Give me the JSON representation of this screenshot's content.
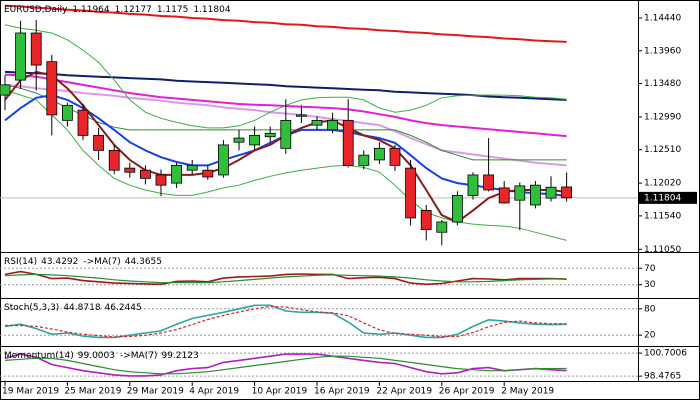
{
  "chart_data": [
    {
      "type": "candlestick",
      "title": "EURUSD,Daily",
      "categories": [
        "19 Mar 2019",
        null,
        null,
        null,
        "25 Mar 2019",
        null,
        null,
        null,
        "29 Mar 2019",
        null,
        null,
        null,
        "4 Apr 2019",
        null,
        null,
        null,
        "10 Apr 2019",
        null,
        null,
        null,
        "16 Apr 2019",
        null,
        null,
        null,
        "22 Apr 2019",
        null,
        null,
        null,
        "26 Apr 2019",
        null,
        null,
        null,
        "2 May 2019",
        null,
        null,
        null,
        null
      ],
      "open": [
        1.1331,
        1.1353,
        1.1422,
        1.138,
        1.1294,
        1.1309,
        1.1272,
        1.125,
        1.1224,
        1.1221,
        1.1214,
        1.1202,
        1.1221,
        1.1221,
        1.1214,
        1.1262,
        1.1258,
        1.127,
        1.1253,
        1.13,
        1.1287,
        1.128,
        1.1294,
        1.1228,
        1.1236,
        1.1253,
        1.1224,
        1.1162,
        1.113,
        1.1145,
        1.1184,
        1.1214,
        1.1195,
        1.1177,
        1.117,
        1.118,
        1.11964
      ],
      "high": [
        1.136,
        1.144,
        1.1441,
        1.139,
        1.132,
        1.1318,
        1.1283,
        1.1258,
        1.1232,
        1.1228,
        1.1222,
        1.1232,
        1.1236,
        1.1228,
        1.1265,
        1.128,
        1.1285,
        1.1285,
        1.1325,
        1.1316,
        1.13,
        1.1305,
        1.1325,
        1.125,
        1.1262,
        1.1258,
        1.1236,
        1.117,
        1.1148,
        1.119,
        1.1218,
        1.1268,
        1.1205,
        1.1203,
        1.1205,
        1.1212,
        1.12177
      ],
      "low": [
        1.1309,
        1.134,
        1.1338,
        1.1272,
        1.1285,
        1.1265,
        1.1236,
        1.1215,
        1.121,
        1.12,
        1.1183,
        1.1195,
        1.1215,
        1.1207,
        1.121,
        1.125,
        1.125,
        1.1262,
        1.1245,
        1.129,
        1.128,
        1.1275,
        1.1225,
        1.1222,
        1.123,
        1.122,
        1.114,
        1.1118,
        1.1111,
        1.114,
        1.1178,
        1.119,
        1.1172,
        1.1133,
        1.1165,
        1.1175,
        1.1175
      ],
      "close": [
        1.1346,
        1.1422,
        1.1375,
        1.1302,
        1.1316,
        1.1272,
        1.125,
        1.1221,
        1.1218,
        1.1209,
        1.1199,
        1.1228,
        1.1228,
        1.1211,
        1.1258,
        1.1268,
        1.1272,
        1.1275,
        1.1294,
        1.1302,
        1.1294,
        1.1294,
        1.1228,
        1.1243,
        1.1253,
        1.1228,
        1.1151,
        1.1134,
        1.1145,
        1.1184,
        1.1214,
        1.1192,
        1.1173,
        1.1198,
        1.1199,
        1.1196,
        1.11804
      ],
      "up_color": "#2fbf3a",
      "down_color": "#e8262a",
      "overlays": [
        {
          "color": "#e01818",
          "values": [
            1.1462,
            1.1461,
            1.1459,
            1.1458,
            1.1456,
            1.1455,
            1.1453,
            1.1452,
            1.145,
            1.1449,
            1.1447,
            1.1446,
            1.1444,
            1.1443,
            1.1441,
            1.144,
            1.1438,
            1.1437,
            1.1435,
            1.1434,
            1.1432,
            1.1431,
            1.1429,
            1.1428,
            1.1426,
            1.1425,
            1.1423,
            1.1422,
            1.142,
            1.1419,
            1.1417,
            1.1416,
            1.1414,
            1.1413,
            1.1411,
            1.141,
            1.1409
          ]
        },
        {
          "color": "#141c6e",
          "values": [
            1.1365,
            1.1364,
            1.1363,
            1.1362,
            1.136,
            1.1359,
            1.1358,
            1.1357,
            1.1356,
            1.1355,
            1.1354,
            1.1352,
            1.1351,
            1.135,
            1.1349,
            1.1348,
            1.1347,
            1.1346,
            1.1344,
            1.1343,
            1.1342,
            1.1341,
            1.134,
            1.1339,
            1.1338,
            1.1336,
            1.1335,
            1.1334,
            1.1333,
            1.1332,
            1.1331,
            1.1329,
            1.1328,
            1.1327,
            1.1326,
            1.1325,
            1.1324
          ]
        },
        {
          "color": "#e020d8",
          "values": [
            1.1361,
            1.136,
            1.1358,
            1.1354,
            1.135,
            1.1346,
            1.1342,
            1.1338,
            1.1334,
            1.1331,
            1.1328,
            1.1326,
            1.1324,
            1.1322,
            1.132,
            1.1318,
            1.1317,
            1.1316,
            1.1315,
            1.1314,
            1.1313,
            1.1312,
            1.131,
            1.1307,
            1.1303,
            1.1299,
            1.1294,
            1.129,
            1.1287,
            1.1285,
            1.1283,
            1.1281,
            1.1279,
            1.1277,
            1.1275,
            1.1273,
            1.1271
          ]
        },
        {
          "color": "#dc9ae6",
          "values": [
            1.1346,
            1.1344,
            1.1341,
            1.1339,
            1.1337,
            1.1334,
            1.1332,
            1.133,
            1.1327,
            1.1325,
            1.1323,
            1.132,
            1.1318,
            1.1316,
            1.1313,
            1.1311,
            1.1309,
            1.1306,
            1.1304,
            1.1302,
            1.1299,
            1.1296,
            1.1293,
            1.129,
            1.1287,
            1.1278,
            1.1268,
            1.1259,
            1.125,
            1.1247,
            1.1244,
            1.1241,
            1.1238,
            1.1235,
            1.1232,
            1.123,
            1.1228
          ]
        },
        {
          "color": "#2e8b2e",
          "values": [
            1.1346,
            1.1341,
            1.1334,
            1.1324,
            1.1312,
            1.1302,
            1.1291,
            1.1284,
            1.128,
            1.128,
            1.128,
            1.128,
            1.128,
            1.128,
            1.128,
            1.128,
            1.128,
            1.128,
            1.128,
            1.128,
            1.128,
            1.128,
            1.128,
            1.128,
            1.128,
            1.128,
            1.1272,
            1.1262,
            1.125,
            1.1243,
            1.1236,
            1.1236,
            1.1236,
            1.1236,
            1.1236,
            1.1236,
            1.1236
          ]
        },
        {
          "color": "#3cb043",
          "values": [
            1.1434,
            1.1429,
            1.1426,
            1.1422,
            1.1412,
            1.1397,
            1.1379,
            1.1353,
            1.1324,
            1.1306,
            1.1297,
            1.1291,
            1.1286,
            1.1283,
            1.1283,
            1.1286,
            1.1294,
            1.1306,
            1.1316,
            1.1324,
            1.1327,
            1.1328,
            1.1328,
            1.1324,
            1.1312,
            1.1306,
            1.1309,
            1.1316,
            1.1327,
            1.133,
            1.1331,
            1.1331,
            1.1331,
            1.133,
            1.1328,
            1.1327,
            1.1325
          ]
        },
        {
          "color": "#3cb043",
          "values": [
            1.1338,
            1.1331,
            1.1324,
            1.1302,
            1.128,
            1.125,
            1.1228,
            1.1209,
            1.1199,
            1.1192,
            1.1187,
            1.1184,
            1.1184,
            1.1189,
            1.1195,
            1.1199,
            1.1206,
            1.1212,
            1.1217,
            1.1221,
            1.1224,
            1.1227,
            1.1228,
            1.1225,
            1.1218,
            1.1199,
            1.1177,
            1.1159,
            1.1151,
            1.1145,
            1.1142,
            1.114,
            1.1139,
            1.1136,
            1.113,
            1.1124,
            1.1118
          ]
        },
        {
          "color": "#1440e6",
          "values": [
            1.1294,
            1.1312,
            1.1327,
            1.1331,
            1.1324,
            1.1312,
            1.1297,
            1.128,
            1.1262,
            1.125,
            1.124,
            1.1233,
            1.1228,
            1.1228,
            1.1236,
            1.1243,
            1.125,
            1.1261,
            1.1272,
            1.128,
            1.128,
            1.128,
            1.1277,
            1.1272,
            1.1268,
            1.1261,
            1.1243,
            1.1224,
            1.1209,
            1.1202,
            1.1199,
            1.1195,
            1.1192,
            1.1189,
            1.1187,
            1.1186,
            1.1183
          ]
        },
        {
          "color": "#8b1a1a",
          "values": [
            1.1324,
            1.1353,
            1.1365,
            1.136,
            1.1341,
            1.1316,
            1.1287,
            1.1258,
            1.1236,
            1.1221,
            1.1214,
            1.1214,
            1.1214,
            1.1217,
            1.1224,
            1.1236,
            1.125,
            1.1258,
            1.1272,
            1.1283,
            1.1291,
            1.1294,
            1.1283,
            1.1272,
            1.1265,
            1.1253,
            1.1228,
            1.1192,
            1.1155,
            1.1145,
            1.1162,
            1.118,
            1.1189,
            1.1192,
            1.1192,
            1.1192,
            1.1189
          ]
        }
      ],
      "ylim": [
        1.1104,
        1.1466
      ],
      "yticks": [
        {
          "value": 1.1444,
          "label": "1.14440"
        },
        {
          "value": 1.1396,
          "label": "1.13960"
        },
        {
          "value": 1.1348,
          "label": "1.13480"
        },
        {
          "value": 1.1299,
          "label": "1.12990"
        },
        {
          "value": 1.1251,
          "label": "1.12510"
        },
        {
          "value": 1.1202,
          "label": "1.12020"
        },
        {
          "value": 1.1154,
          "label": "1.11540"
        },
        {
          "value": 1.1105,
          "label": "1.11050"
        }
      ]
    },
    {
      "type": "line",
      "label": "RSI(14)",
      "ma_label": "->MA(7)",
      "series": [
        {
          "color": "#a01818",
          "values": [
            55,
            62,
            55,
            45,
            46,
            40,
            37,
            34,
            33,
            32,
            31,
            38,
            39,
            37,
            46,
            49,
            50,
            51,
            55,
            56,
            55,
            55,
            45,
            47,
            48,
            45,
            34,
            31,
            33,
            39,
            45,
            44,
            42,
            45,
            45,
            45,
            43.4292
          ]
        },
        {
          "color": "#2e8b2e",
          "values": [
            52,
            54,
            55,
            54,
            52,
            49,
            46,
            42,
            39,
            37,
            35,
            35,
            35,
            35,
            37,
            40,
            43,
            46,
            49,
            51,
            53,
            54,
            53,
            52,
            51,
            49,
            46,
            42,
            39,
            37,
            37,
            38,
            40,
            42,
            43,
            44,
            44.3655
          ]
        }
      ],
      "ylim": [
        0,
        100
      ],
      "yticks": [
        70,
        30
      ]
    },
    {
      "type": "line",
      "label": "Stoch(5,3,3)",
      "series": [
        {
          "color": "#2aa6a6",
          "values": [
            40,
            45,
            35,
            22,
            25,
            18,
            15,
            15,
            20,
            25,
            30,
            45,
            58,
            65,
            72,
            80,
            88,
            88,
            75,
            72,
            72,
            70,
            50,
            25,
            22,
            25,
            20,
            15,
            15,
            22,
            40,
            55,
            52,
            48,
            45,
            44,
            44.8718
          ]
        },
        {
          "color": "#e02020",
          "dash": true,
          "values": [
            42,
            42,
            40,
            34,
            27,
            22,
            19,
            16,
            17,
            20,
            25,
            33,
            44,
            56,
            65,
            73,
            80,
            85,
            84,
            78,
            73,
            71,
            64,
            48,
            32,
            24,
            22,
            20,
            17,
            17,
            26,
            39,
            49,
            52,
            48,
            46,
            46.2445
          ]
        }
      ],
      "ylim": [
        0,
        100
      ],
      "yticks": [
        80,
        20
      ]
    },
    {
      "type": "line",
      "label": "Momentum(14)",
      "ma_label": "->MA(7)",
      "series": [
        {
          "color": "#b020c0",
          "values": [
            100.2,
            100.6,
            100.3,
            99.6,
            99.3,
            99.0,
            98.8,
            98.6,
            98.5,
            98.5,
            98.6,
            99.0,
            99.2,
            99.3,
            99.8,
            100.0,
            100.2,
            100.4,
            100.6,
            100.6,
            100.6,
            100.4,
            100.2,
            100.0,
            99.8,
            99.7,
            99.3,
            98.9,
            98.7,
            98.8,
            99.2,
            99.3,
            99.0,
            99.1,
            99.2,
            99.1,
            99.0003
          ]
        },
        {
          "color": "#2e8b2e",
          "values": [
            100.0,
            100.1,
            100.2,
            100.2,
            100.0,
            99.7,
            99.4,
            99.1,
            98.9,
            98.8,
            98.7,
            98.7,
            98.8,
            98.9,
            99.1,
            99.3,
            99.5,
            99.7,
            99.9,
            100.1,
            100.3,
            100.4,
            100.4,
            100.3,
            100.2,
            100.0,
            99.8,
            99.6,
            99.4,
            99.2,
            99.1,
            99.0,
            99.0,
            99.1,
            99.2,
            99.2,
            99.2123
          ]
        }
      ],
      "ylim": [
        98.2,
        101.0
      ],
      "yticks": [
        100.7006,
        98.4765
      ]
    }
  ]
}
